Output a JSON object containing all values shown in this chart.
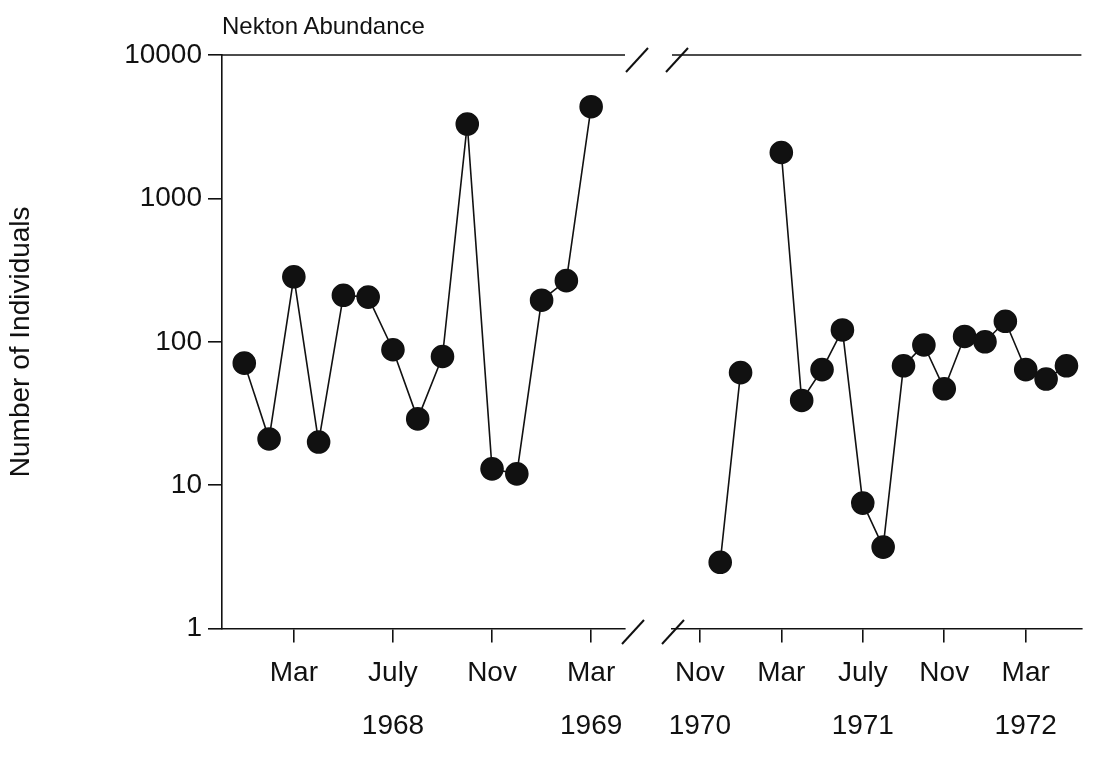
{
  "chart_data": [
    {
      "type": "line",
      "title": "Nekton Abundance",
      "ylabel": "Number of Individuals",
      "x": [
        "1968-01",
        "1968-02",
        "1968-03",
        "1968-04",
        "1968-05",
        "1968-06",
        "1968-07",
        "1968-08",
        "1968-09",
        "1968-10",
        "1968-11",
        "1968-12",
        "1969-01",
        "1969-02",
        "1969-03"
      ],
      "values": [
        71,
        21,
        284,
        20,
        211,
        205,
        88,
        29,
        79,
        3300,
        13,
        12,
        195,
        267,
        4360
      ],
      "color": "#111111",
      "marker": "circle",
      "line_style": "solid",
      "log": true,
      "legend": false,
      "xlim": [
        "1967-12-04",
        "1969-04-12"
      ],
      "xticks": [
        {
          "value": "1968-03",
          "label": "Mar"
        },
        {
          "value": "1968-07",
          "label": "July\n1968"
        },
        {
          "value": "1968-11",
          "label": "Nov"
        },
        {
          "value": "1969-03",
          "label": "Mar\n1969"
        }
      ],
      "ylim": [
        1,
        10000
      ],
      "yticks": [
        1,
        10,
        100,
        1000,
        10000
      ]
    },
    {
      "type": "line",
      "x": [
        "1970-12",
        "1971-01",
        "1971-02",
        "1971-03",
        "1971-04",
        "1971-05",
        "1971-06",
        "1971-07",
        "1971-08",
        "1971-09",
        "1971-10",
        "1971-11",
        "1971-12",
        "1972-01",
        "1972-02",
        "1972-03",
        "1972-04",
        "1972-05"
      ],
      "values": [
        2.9,
        61,
        null,
        2090,
        39,
        64,
        121,
        7.5,
        3.7,
        68,
        95,
        47,
        109,
        100,
        139,
        64,
        55,
        68
      ],
      "color": "#111111",
      "marker": "circle",
      "line_style": "solid",
      "log": true,
      "legend": false,
      "tick_labels": "x",
      "xlim": [
        "1970-09-20",
        "1972-05-23"
      ],
      "xticks": [
        {
          "value": "1970-11",
          "label": "Nov\n1970"
        },
        {
          "value": "1971-03",
          "label": "Mar"
        },
        {
          "value": "1971-07",
          "label": "July\n1971"
        },
        {
          "value": "1971-11",
          "label": "Nov"
        },
        {
          "value": "1972-03",
          "label": "Mar\n1972"
        }
      ],
      "ylim": [
        1,
        10000
      ],
      "yticks": [
        1,
        10,
        100,
        1000,
        10000
      ]
    }
  ]
}
